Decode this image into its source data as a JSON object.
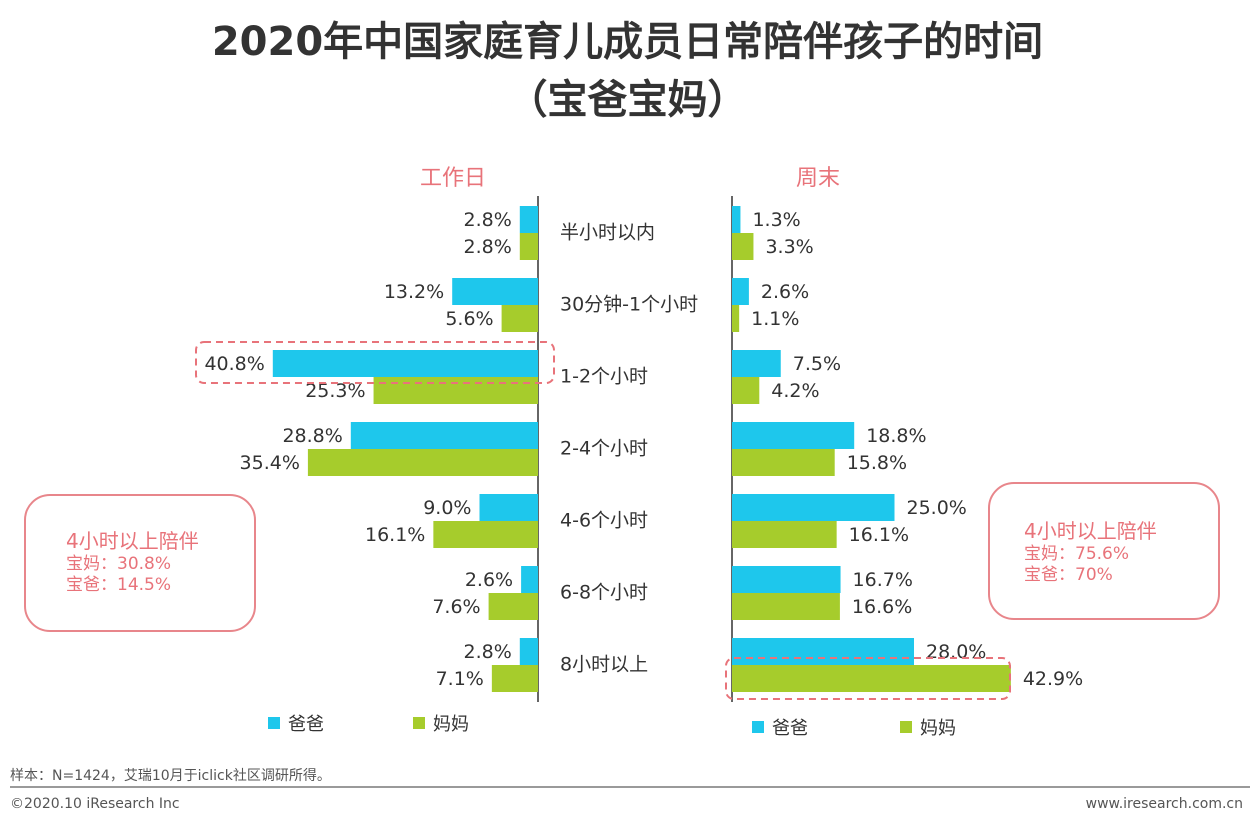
{
  "title": {
    "line1": "2020年中国家庭育儿成员日常陪伴孩子的时间",
    "line2": "（宝爸宝妈）"
  },
  "colors": {
    "dad": "#1ec7ec",
    "mom": "#a6cc2c",
    "accent": "#e8737a"
  },
  "chart_data": [
    {
      "type": "bar",
      "title": "工作日",
      "orientation": "horizontal",
      "categories": [
        "半小时以内",
        "30分钟-1个小时",
        "1-2个小时",
        "2-4个小时",
        "4-6个小时",
        "6-8个小时",
        "8小时以上"
      ],
      "series": [
        {
          "name": "爸爸",
          "values": [
            2.8,
            13.2,
            40.8,
            28.8,
            9.0,
            2.6,
            2.8
          ],
          "labels": [
            "2.8%",
            "13.2%",
            "40.8%",
            "28.8%",
            "9.0%",
            "2.6%",
            "2.8%"
          ]
        },
        {
          "name": "妈妈",
          "values": [
            2.8,
            5.6,
            25.3,
            35.4,
            16.1,
            7.6,
            7.1
          ],
          "labels": [
            "2.8%",
            "5.6%",
            "25.3%",
            "35.4%",
            "16.1%",
            "7.6%",
            "7.1%"
          ]
        }
      ],
      "highlight": {
        "series": "爸爸",
        "category": "1-2个小时"
      }
    },
    {
      "type": "bar",
      "title": "周末",
      "orientation": "horizontal",
      "categories": [
        "半小时以内",
        "30分钟-1个小时",
        "1-2个小时",
        "2-4个小时",
        "4-6个小时",
        "6-8个小时",
        "8小时以上"
      ],
      "series": [
        {
          "name": "爸爸",
          "values": [
            1.3,
            2.6,
            7.5,
            18.8,
            25.0,
            16.7,
            28.0
          ],
          "labels": [
            "1.3%",
            "2.6%",
            "7.5%",
            "18.8%",
            "25.0%",
            "16.7%",
            "28.0%"
          ]
        },
        {
          "name": "妈妈",
          "values": [
            3.3,
            1.1,
            4.2,
            15.8,
            16.1,
            16.6,
            42.9
          ],
          "labels": [
            "3.3%",
            "1.1%",
            "4.2%",
            "15.8%",
            "16.1%",
            "16.6%",
            "42.9%"
          ]
        }
      ],
      "highlight": {
        "series": "妈妈",
        "category": "8小时以上"
      }
    }
  ],
  "notes": {
    "left": {
      "heading": "4小时以上陪伴",
      "line1": "宝妈：30.8%",
      "line2": "宝爸：14.5%"
    },
    "right": {
      "heading": "4小时以上陪伴",
      "line1": "宝妈：75.6%",
      "line2": "宝爸：70%"
    }
  },
  "legend": {
    "dad": "爸爸",
    "mom": "妈妈"
  },
  "footer": {
    "sample": "样本：N=1424，艾瑞10月于iclick社区调研所得。",
    "copyright": "©2020.10 iResearch Inc",
    "website": "www.iresearch.com.cn"
  }
}
